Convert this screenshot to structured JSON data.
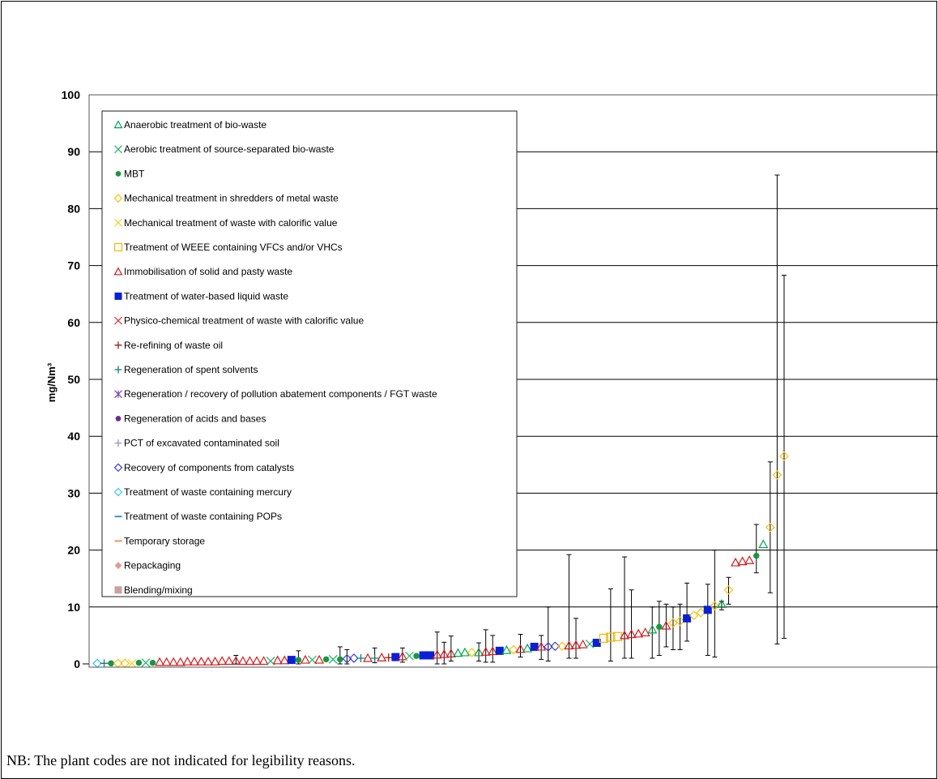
{
  "footnote": "NB: The plant codes are not indicated for legibility reasons.",
  "chart_data": {
    "type": "scatter",
    "title": "",
    "xlabel": "",
    "ylabel": "mg/Nm³",
    "ylim": [
      0,
      100
    ],
    "y_ticks": [
      0,
      10,
      20,
      30,
      40,
      50,
      60,
      70,
      80,
      90,
      100
    ],
    "grid": "horizontal",
    "legend_position": "top-left",
    "x_axis": "plants ranked by emission value (plant codes not shown)",
    "legend": [
      {
        "name": "Anaerobic treatment of bio-waste",
        "marker": "triangle-open",
        "color": "#00a651"
      },
      {
        "name": "Aerobic treatment of source-separated bio-waste",
        "marker": "x",
        "color": "#2bb673"
      },
      {
        "name": "MBT",
        "marker": "circle-filled",
        "color": "#1a9641"
      },
      {
        "name": "Mechanical treatment in shredders of metal waste",
        "marker": "diamond-open",
        "color": "#f4c20d"
      },
      {
        "name": "Mechanical treatment of waste with calorific value",
        "marker": "x",
        "color": "#f6d32d"
      },
      {
        "name": "Treatment of WEEE containing VFCs and/or VHCs",
        "marker": "square-open",
        "color": "#f2b705"
      },
      {
        "name": "Immobilisation of solid and pasty waste",
        "marker": "triangle-open",
        "color": "#d7191c"
      },
      {
        "name": "Treatment of water-based liquid waste",
        "marker": "square-filled",
        "color": "#0a1fd6"
      },
      {
        "name": "Physico-chemical treatment of waste with calorific value",
        "marker": "x",
        "color": "#e03a3a"
      },
      {
        "name": "Re-refining of waste oil",
        "marker": "plus",
        "color": "#9e1b1b"
      },
      {
        "name": "Regeneration of spent solvents",
        "marker": "plus",
        "color": "#0f7f7f"
      },
      {
        "name": "Regeneration / recovery of pollution abatement components / FGT waste",
        "marker": "star",
        "color": "#7b3fb3"
      },
      {
        "name": "Regeneration of acids and bases",
        "marker": "circle-filled",
        "color": "#6a2c91"
      },
      {
        "name": "PCT of excavated contaminated soil",
        "marker": "plus",
        "color": "#9a8fc7"
      },
      {
        "name": "Recovery of components from catalysts",
        "marker": "diamond-open",
        "color": "#3b3bd1"
      },
      {
        "name": "Treatment of waste containing mercury",
        "marker": "diamond-open",
        "color": "#33c7e6"
      },
      {
        "name": "Treatment of waste containing POPs",
        "marker": "dash",
        "color": "#1f8fbf"
      },
      {
        "name": "Temporary storage",
        "marker": "dash",
        "color": "#f08c3c"
      },
      {
        "name": "Repackaging",
        "marker": "diamond-filled",
        "color": "#e39a9a"
      },
      {
        "name": "Blending/mixing",
        "marker": "square-filled",
        "color": "#c9a0a0"
      }
    ],
    "points": [
      {
        "s": 15,
        "y": 0.1
      },
      {
        "s": 10,
        "y": 0.1
      },
      {
        "s": 2,
        "y": 0.1
      },
      {
        "s": 3,
        "y": 0.1
      },
      {
        "s": 3,
        "y": 0.1
      },
      {
        "s": 4,
        "y": 0.1
      },
      {
        "s": 2,
        "y": 0.2
      },
      {
        "s": 1,
        "y": 0.2
      },
      {
        "s": 2,
        "y": 0.2
      },
      {
        "s": 6,
        "y": 0.3
      },
      {
        "s": 6,
        "y": 0.3
      },
      {
        "s": 6,
        "y": 0.3
      },
      {
        "s": 6,
        "y": 0.3
      },
      {
        "s": 6,
        "y": 0.4
      },
      {
        "s": 6,
        "y": 0.4
      },
      {
        "s": 6,
        "y": 0.4
      },
      {
        "s": 6,
        "y": 0.4
      },
      {
        "s": 6,
        "y": 0.4
      },
      {
        "s": 6,
        "y": 0.5
      },
      {
        "s": 6,
        "y": 0.5
      },
      {
        "s": 6,
        "y": 0.5,
        "e": [
          0,
          1.5
        ]
      },
      {
        "s": 6,
        "y": 0.5
      },
      {
        "s": 6,
        "y": 0.5
      },
      {
        "s": 6,
        "y": 0.5
      },
      {
        "s": 6,
        "y": 0.5
      },
      {
        "s": 1,
        "y": 0.5
      },
      {
        "s": 6,
        "y": 0.6
      },
      {
        "s": 6,
        "y": 0.6
      },
      {
        "s": 7,
        "y": 0.7
      },
      {
        "s": 2,
        "y": 0.7,
        "e": [
          0,
          2.3
        ]
      },
      {
        "s": 6,
        "y": 0.7
      },
      {
        "s": 1,
        "y": 0.7
      },
      {
        "s": 6,
        "y": 0.7
      },
      {
        "s": 2,
        "y": 0.8
      },
      {
        "s": 1,
        "y": 0.8
      },
      {
        "s": 2,
        "y": 0.8,
        "e": [
          0,
          3
        ]
      },
      {
        "s": 14,
        "y": 0.9,
        "e": [
          0,
          2.5
        ]
      },
      {
        "s": 14,
        "y": 1
      },
      {
        "s": 10,
        "y": 1
      },
      {
        "s": 6,
        "y": 1
      },
      {
        "s": 10,
        "y": 1,
        "e": [
          0.2,
          2.8
        ]
      },
      {
        "s": 6,
        "y": 1.1
      },
      {
        "s": 9,
        "y": 1.1
      },
      {
        "s": 7,
        "y": 1.2
      },
      {
        "s": 6,
        "y": 1.3,
        "e": [
          0.3,
          2.8
        ]
      },
      {
        "s": 1,
        "y": 1.4
      },
      {
        "s": 2,
        "y": 1.4
      },
      {
        "s": 7,
        "y": 1.5
      },
      {
        "s": 7,
        "y": 1.5
      },
      {
        "s": 6,
        "y": 1.6,
        "e": [
          0,
          5.6
        ]
      },
      {
        "s": 6,
        "y": 1.7,
        "e": [
          0,
          3.8
        ]
      },
      {
        "s": 6,
        "y": 1.8,
        "e": [
          0.5,
          4.9
        ]
      },
      {
        "s": 0,
        "y": 1.9
      },
      {
        "s": 0,
        "y": 2.0
      },
      {
        "s": 3,
        "y": 2.0
      },
      {
        "s": 0,
        "y": 2.0,
        "e": [
          0.5,
          3.7
        ]
      },
      {
        "s": 6,
        "y": 2.1,
        "e": [
          0.3,
          6
        ]
      },
      {
        "s": 6,
        "y": 2.2,
        "e": [
          0.3,
          5
        ]
      },
      {
        "s": 7,
        "y": 2.3
      },
      {
        "s": 0,
        "y": 2.4
      },
      {
        "s": 3,
        "y": 2.5
      },
      {
        "s": 6,
        "y": 2.6,
        "e": [
          1.2,
          5.2
        ]
      },
      {
        "s": 0,
        "y": 2.7
      },
      {
        "s": 7,
        "y": 3
      },
      {
        "s": 6,
        "y": 3,
        "e": [
          0.8,
          5
        ]
      },
      {
        "s": 14,
        "y": 3,
        "e": [
          0.5,
          10
        ]
      },
      {
        "s": 14,
        "y": 3.1
      },
      {
        "s": 3,
        "y": 3.1
      },
      {
        "s": 6,
        "y": 3.2,
        "e": [
          1,
          19.2
        ]
      },
      {
        "s": 6,
        "y": 3.3,
        "e": [
          1,
          8
        ]
      },
      {
        "s": 6,
        "y": 3.4
      },
      {
        "s": 1,
        "y": 3.5
      },
      {
        "s": 7,
        "y": 3.7
      },
      {
        "s": 5,
        "y": 4.5
      },
      {
        "s": 5,
        "y": 4.7,
        "e": [
          0.5,
          13.2
        ]
      },
      {
        "s": 5,
        "y": 4.8
      },
      {
        "s": 6,
        "y": 5,
        "e": [
          1,
          18.8
        ]
      },
      {
        "s": 6,
        "y": 5.2,
        "e": [
          1,
          13
        ]
      },
      {
        "s": 6,
        "y": 5.3
      },
      {
        "s": 6,
        "y": 5.5
      },
      {
        "s": 0,
        "y": 6,
        "e": [
          1,
          10
        ]
      },
      {
        "s": 2,
        "y": 6.5,
        "e": [
          1.5,
          11
        ]
      },
      {
        "s": 6,
        "y": 6.7,
        "e": [
          3,
          10.5
        ]
      },
      {
        "s": 3,
        "y": 7.2,
        "e": [
          2.5,
          10
        ]
      },
      {
        "s": 3,
        "y": 7.5,
        "e": [
          2.5,
          10.5
        ]
      },
      {
        "s": 7,
        "y": 8,
        "e": [
          4,
          14.2
        ]
      },
      {
        "s": 3,
        "y": 8.5
      },
      {
        "s": 3,
        "y": 9
      },
      {
        "s": 7,
        "y": 9.5,
        "e": [
          1.5,
          14
        ]
      },
      {
        "s": 3,
        "y": 10.2,
        "e": [
          1.2,
          20
        ]
      },
      {
        "s": 0,
        "y": 10.5,
        "e": [
          9.5,
          11
        ]
      },
      {
        "s": 3,
        "y": 13,
        "e": [
          10.5,
          15.2
        ]
      },
      {
        "s": 6,
        "y": 17.8
      },
      {
        "s": 6,
        "y": 18
      },
      {
        "s": 6,
        "y": 18.2
      },
      {
        "s": 2,
        "y": 19,
        "e": [
          16,
          24.5
        ]
      },
      {
        "s": 0,
        "y": 21
      },
      {
        "s": 3,
        "y": 24,
        "e": [
          12.5,
          35.5
        ]
      },
      {
        "s": 3,
        "y": 33.2,
        "e": [
          3.5,
          85.9
        ]
      },
      {
        "s": 3,
        "y": 36.5,
        "e": [
          4.5,
          68.3
        ]
      }
    ]
  }
}
